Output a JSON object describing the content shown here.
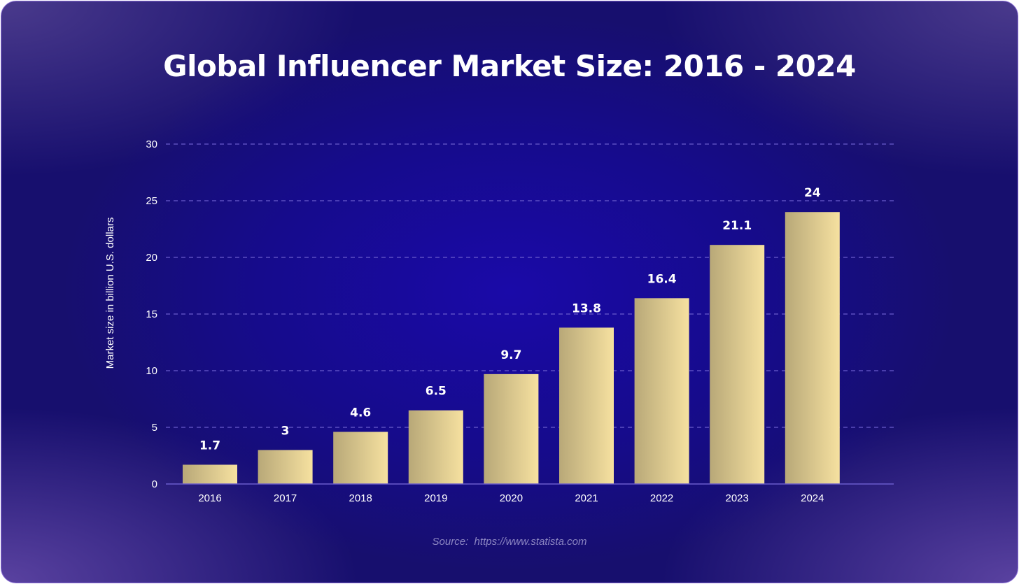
{
  "chart_data": {
    "type": "bar",
    "title": "Global Influencer Market Size: 2016 - 2024",
    "categories": [
      "2016",
      "2017",
      "2018",
      "2019",
      "2020",
      "2021",
      "2022",
      "2023",
      "2024"
    ],
    "values": [
      1.7,
      3,
      4.6,
      6.5,
      9.7,
      13.8,
      16.4,
      21.1,
      24
    ],
    "value_labels": [
      "1.7",
      "3",
      "4.6",
      "6.5",
      "9.7",
      "13.8",
      "16.4",
      "21.1",
      "24"
    ],
    "xlabel": "",
    "ylabel": "Market size in billion U.S. dollars",
    "ylim": [
      0,
      30
    ],
    "yticks": [
      0,
      5,
      10,
      15,
      20,
      25,
      30
    ],
    "ytick_labels": [
      "0",
      "5",
      "10",
      "15",
      "20",
      "25",
      "30"
    ],
    "grid": true,
    "legend": "none",
    "source": "Source:  https://www.statista.com",
    "colors": {
      "bar_start": "#b8a878",
      "bar_end": "#f6e1a0",
      "gridline": "#6a5ccc",
      "axis": "#6a5ccc",
      "text": "#ffffff"
    }
  }
}
